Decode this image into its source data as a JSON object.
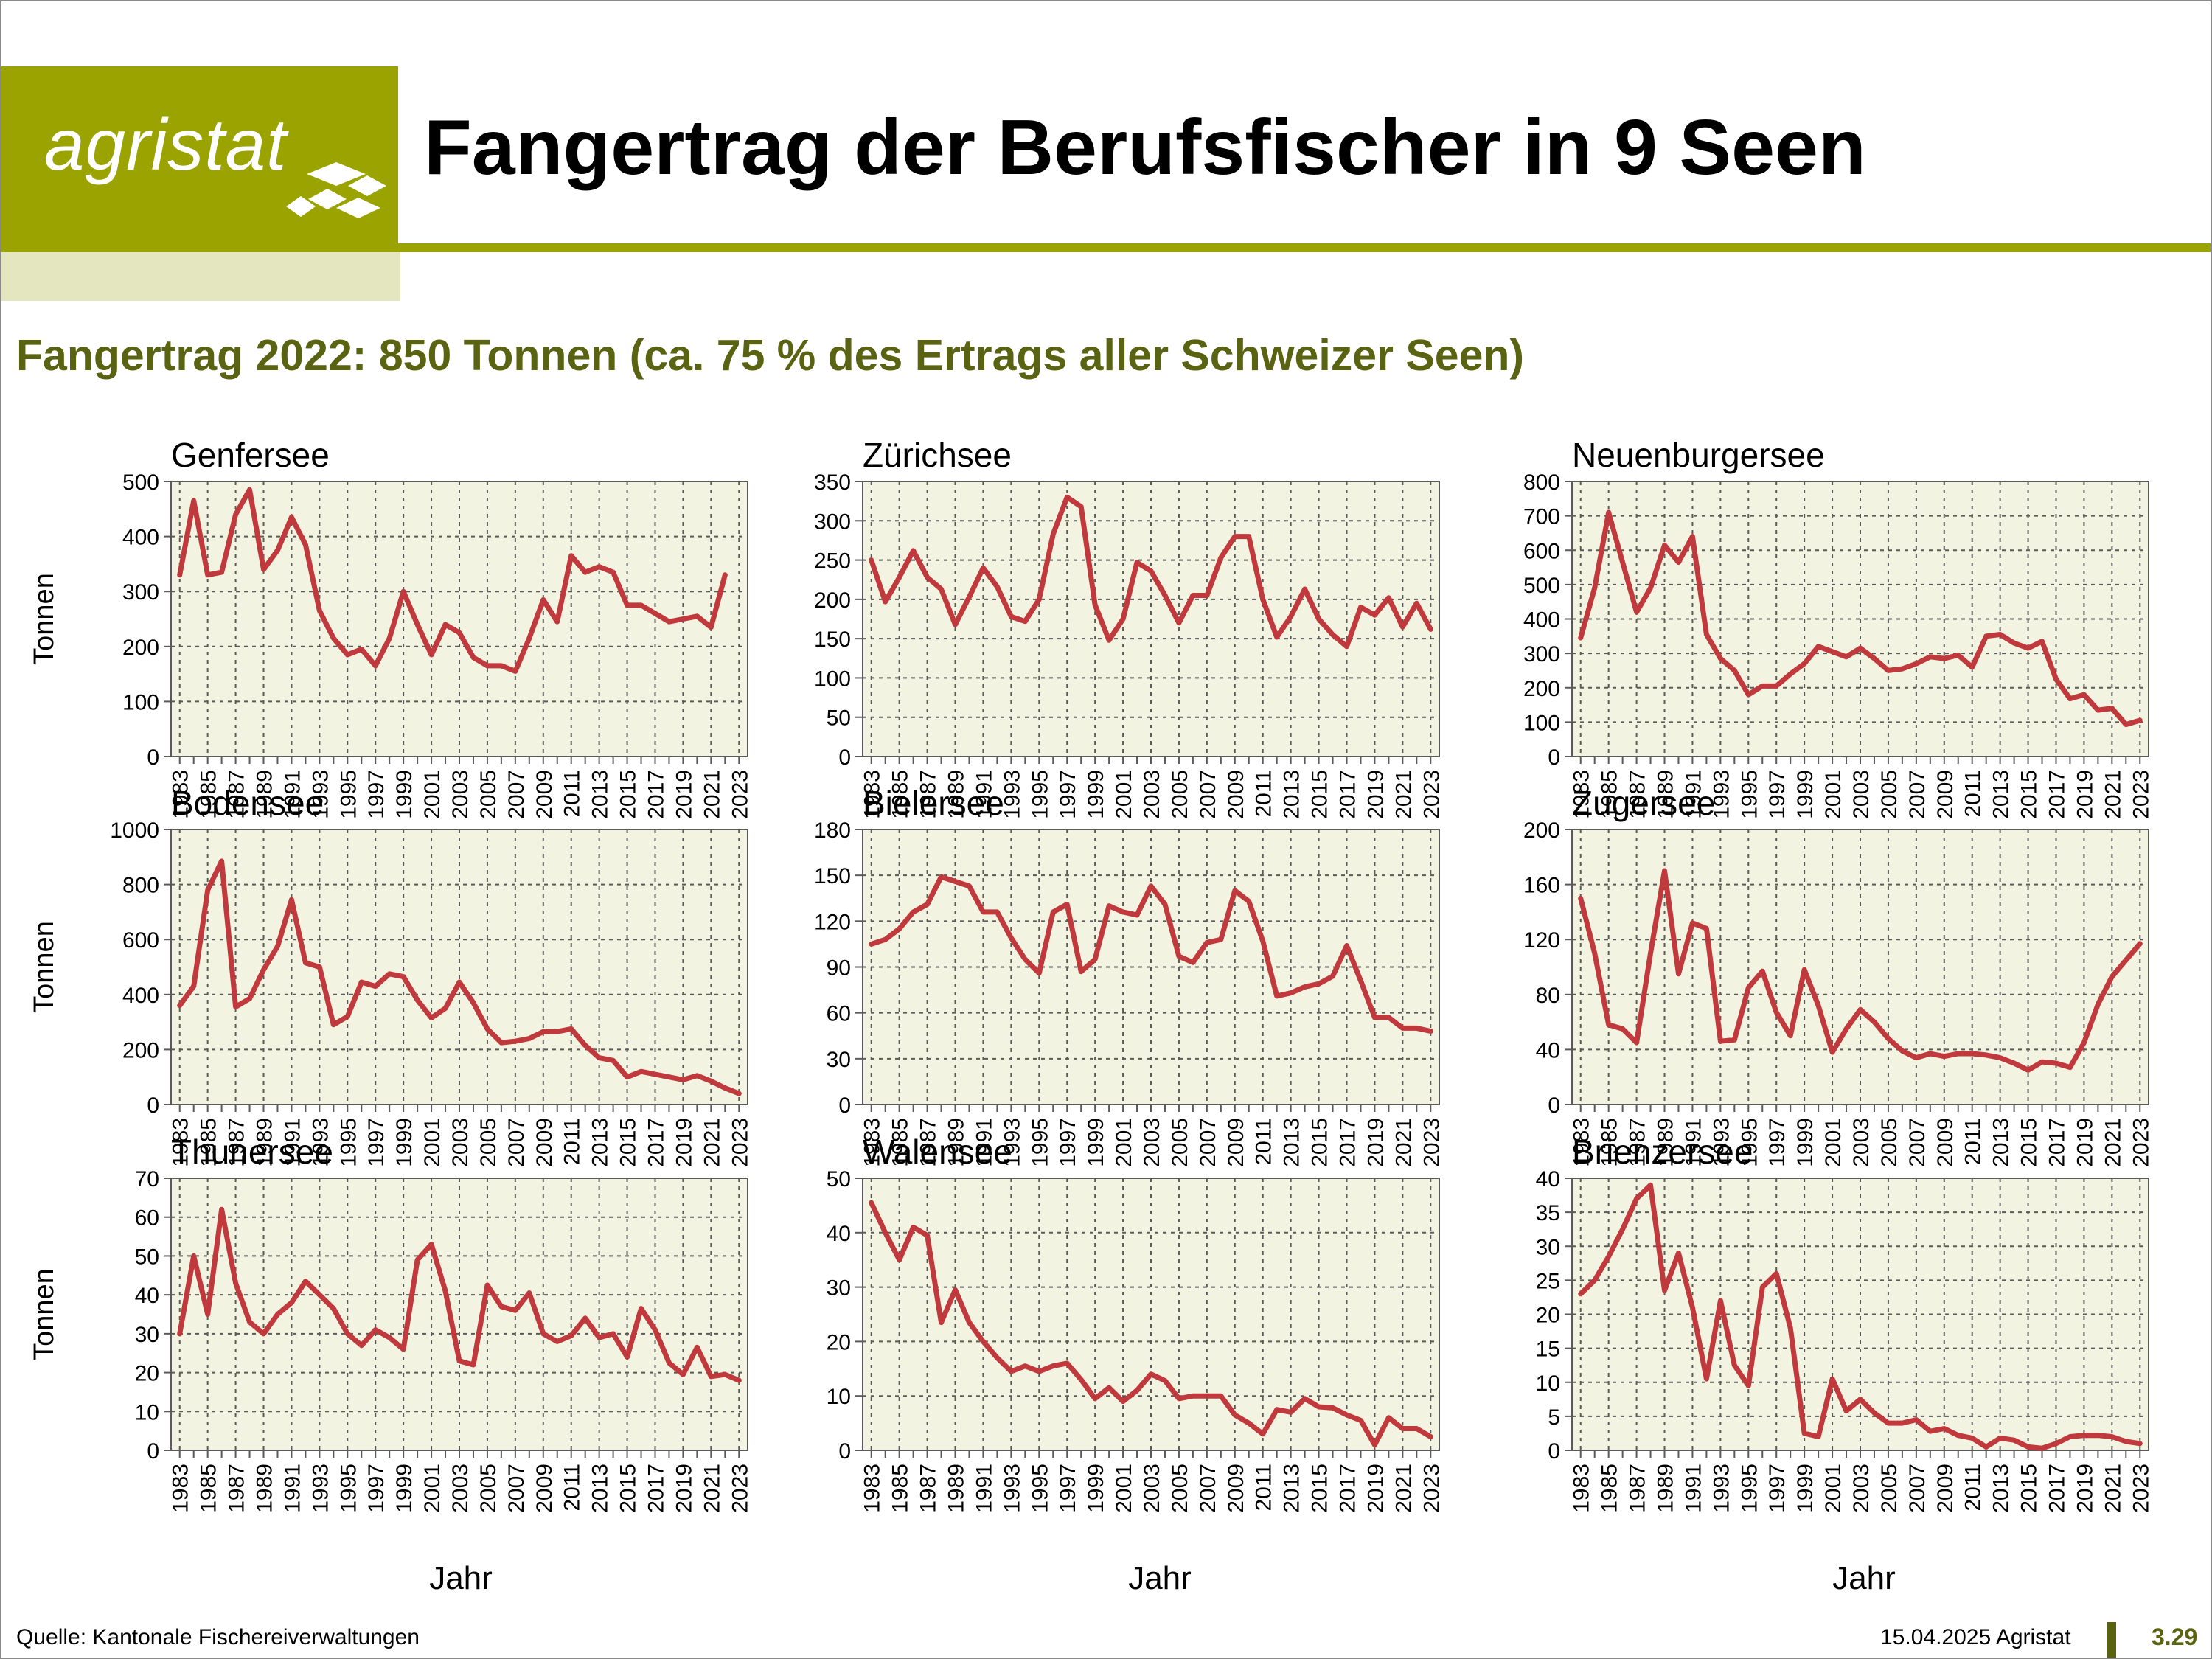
{
  "header": {
    "logo_text": "agristat",
    "title": "Fangertrag der Berufsfischer in 9 Seen",
    "subtitle": "Fangertrag 2022: 850 Tonnen (ca. 75 % des Ertrags aller Schweizer Seen)"
  },
  "footer": {
    "source": "Quelle: Kantonale Fischereiverwaltungen",
    "date": "15.04.2025 Agristat",
    "page": "3.29"
  },
  "colors": {
    "brand_green": "#9aa300",
    "brand_green_light": "#e3e6bf",
    "subtitle_olive": "#5a6312",
    "plot_background": "#f3f3e1",
    "line_red": "#c0393d"
  },
  "chart_data": [
    {
      "type": "line",
      "title": "Genfersee",
      "ylabel": "Tonnen",
      "xlabel": "",
      "ylim": [
        0,
        500
      ],
      "yticks": [
        0,
        100,
        200,
        300,
        400,
        500
      ],
      "x": [
        1983,
        1984,
        1985,
        1986,
        1987,
        1988,
        1989,
        1990,
        1991,
        1992,
        1993,
        1994,
        1995,
        1996,
        1997,
        1998,
        1999,
        2000,
        2001,
        2002,
        2003,
        2004,
        2005,
        2006,
        2007,
        2008,
        2009,
        2010,
        2011,
        2012,
        2013,
        2014,
        2015,
        2016,
        2017,
        2018,
        2019,
        2020,
        2021,
        2022
      ],
      "values": [
        330,
        465,
        330,
        335,
        440,
        485,
        340,
        375,
        435,
        385,
        265,
        215,
        185,
        195,
        165,
        215,
        300,
        240,
        185,
        240,
        225,
        180,
        165,
        165,
        155,
        215,
        285,
        245,
        365,
        335,
        345,
        335,
        275,
        275,
        260,
        245,
        250,
        255,
        235,
        330
      ]
    },
    {
      "type": "line",
      "title": "Zürichsee",
      "ylabel": "",
      "xlabel": "",
      "ylim": [
        0,
        350
      ],
      "yticks": [
        0,
        50,
        100,
        150,
        200,
        250,
        300,
        350
      ],
      "x": [
        1983,
        1984,
        1985,
        1986,
        1987,
        1988,
        1989,
        1990,
        1991,
        1992,
        1993,
        1994,
        1995,
        1996,
        1997,
        1998,
        1999,
        2000,
        2001,
        2002,
        2003,
        2004,
        2005,
        2006,
        2007,
        2008,
        2009,
        2010,
        2011,
        2012,
        2013,
        2014,
        2015,
        2016,
        2017,
        2018,
        2019,
        2020,
        2021,
        2022,
        2023
      ],
      "values": [
        250,
        197,
        228,
        262,
        228,
        213,
        168,
        203,
        240,
        216,
        178,
        172,
        200,
        283,
        330,
        318,
        193,
        148,
        175,
        247,
        236,
        205,
        170,
        205,
        205,
        253,
        280,
        280,
        200,
        152,
        178,
        213,
        175,
        155,
        140,
        190,
        180,
        202,
        165,
        195,
        162
      ]
    },
    {
      "type": "line",
      "title": "Neuenburgersee",
      "ylabel": "",
      "xlabel": "",
      "ylim": [
        0,
        800
      ],
      "yticks": [
        0,
        100,
        200,
        300,
        400,
        500,
        600,
        700,
        800
      ],
      "x": [
        1983,
        1984,
        1985,
        1986,
        1987,
        1988,
        1989,
        1990,
        1991,
        1992,
        1993,
        1994,
        1995,
        1996,
        1997,
        1998,
        1999,
        2000,
        2001,
        2002,
        2003,
        2004,
        2005,
        2006,
        2007,
        2008,
        2009,
        2010,
        2011,
        2012,
        2013,
        2014,
        2015,
        2016,
        2017,
        2018,
        2019,
        2020,
        2021,
        2022,
        2023
      ],
      "values": [
        345,
        490,
        710,
        565,
        420,
        490,
        615,
        565,
        640,
        355,
        285,
        250,
        180,
        205,
        205,
        240,
        270,
        320,
        305,
        290,
        315,
        285,
        250,
        255,
        270,
        290,
        285,
        295,
        260,
        350,
        355,
        330,
        315,
        335,
        225,
        168,
        180,
        135,
        140,
        93,
        105
      ]
    },
    {
      "type": "line",
      "title": "Bodensee",
      "ylabel": "Tonnen",
      "xlabel": "",
      "ylim": [
        0,
        1000
      ],
      "yticks": [
        0,
        200,
        400,
        600,
        800,
        1000
      ],
      "x": [
        1983,
        1984,
        1985,
        1986,
        1987,
        1988,
        1989,
        1990,
        1991,
        1992,
        1993,
        1994,
        1995,
        1996,
        1997,
        1998,
        1999,
        2000,
        2001,
        2002,
        2003,
        2004,
        2005,
        2006,
        2007,
        2008,
        2009,
        2010,
        2011,
        2012,
        2013,
        2014,
        2015,
        2016,
        2017,
        2018,
        2019,
        2020,
        2021,
        2022,
        2023
      ],
      "values": [
        360,
        430,
        780,
        885,
        355,
        385,
        490,
        575,
        745,
        515,
        500,
        290,
        320,
        445,
        430,
        475,
        465,
        380,
        315,
        350,
        445,
        370,
        275,
        225,
        230,
        240,
        265,
        265,
        275,
        215,
        170,
        160,
        100,
        120,
        110,
        100,
        90,
        105,
        85,
        60,
        40
      ]
    },
    {
      "type": "line",
      "title": "Bielersee",
      "ylabel": "",
      "xlabel": "",
      "ylim": [
        0,
        180
      ],
      "yticks": [
        0,
        30,
        60,
        90,
        120,
        150,
        180
      ],
      "x": [
        1983,
        1984,
        1985,
        1986,
        1987,
        1988,
        1989,
        1990,
        1991,
        1992,
        1993,
        1994,
        1995,
        1996,
        1997,
        1998,
        1999,
        2000,
        2001,
        2002,
        2003,
        2004,
        2005,
        2006,
        2007,
        2008,
        2009,
        2010,
        2011,
        2012,
        2013,
        2014,
        2015,
        2016,
        2017,
        2018,
        2019,
        2020,
        2021,
        2022,
        2023
      ],
      "values": [
        105,
        108,
        115,
        126,
        131,
        149,
        146,
        143,
        126,
        126,
        109,
        95,
        86,
        126,
        131,
        87,
        95,
        130,
        126,
        124,
        143,
        131,
        97,
        93,
        106,
        108,
        140,
        133,
        107,
        71,
        73,
        77,
        79,
        84,
        104,
        81,
        57,
        57,
        50,
        50,
        48
      ]
    },
    {
      "type": "line",
      "title": "Zugersee",
      "ylabel": "",
      "xlabel": "",
      "ylim": [
        0,
        200
      ],
      "yticks": [
        0,
        40,
        80,
        120,
        160,
        200
      ],
      "x": [
        1983,
        1984,
        1985,
        1986,
        1987,
        1988,
        1989,
        1990,
        1991,
        1992,
        1993,
        1994,
        1995,
        1996,
        1997,
        1998,
        1999,
        2000,
        2001,
        2002,
        2003,
        2004,
        2005,
        2006,
        2007,
        2008,
        2009,
        2010,
        2011,
        2012,
        2013,
        2014,
        2015,
        2016,
        2017,
        2018,
        2019,
        2020,
        2021,
        2022,
        2023
      ],
      "values": [
        150,
        110,
        58,
        55,
        45,
        110,
        170,
        95,
        132,
        128,
        46,
        47,
        85,
        97,
        67,
        50,
        98,
        72,
        38,
        55,
        69,
        60,
        48,
        39,
        34,
        37,
        35,
        37,
        37,
        36,
        34,
        30,
        25,
        31,
        30,
        27,
        45,
        73,
        93,
        105,
        117
      ]
    },
    {
      "type": "line",
      "title": "Thunersee",
      "ylabel": "Tonnen",
      "xlabel": "",
      "ylim": [
        0,
        70
      ],
      "yticks": [
        0,
        10,
        20,
        30,
        40,
        50,
        60,
        70
      ],
      "x": [
        1983,
        1984,
        1985,
        1986,
        1987,
        1988,
        1989,
        1990,
        1991,
        1992,
        1993,
        1994,
        1995,
        1996,
        1997,
        1998,
        1999,
        2000,
        2001,
        2002,
        2003,
        2004,
        2005,
        2006,
        2007,
        2008,
        2009,
        2010,
        2011,
        2012,
        2013,
        2014,
        2015,
        2016,
        2017,
        2018,
        2019,
        2020,
        2021,
        2022,
        2023
      ],
      "values": [
        30,
        50,
        35,
        62,
        43,
        33,
        30,
        35,
        38,
        43.5,
        40,
        36.5,
        30,
        27,
        31,
        29,
        26,
        49,
        53,
        41,
        23,
        22,
        42.5,
        37,
        36,
        40.5,
        30,
        28,
        29.5,
        34,
        29,
        30,
        24,
        36.5,
        31,
        22.5,
        19.5,
        26.5,
        19,
        19.5,
        18
      ]
    },
    {
      "type": "line",
      "title": "Walensee",
      "ylabel": "",
      "xlabel": "Jahr",
      "ylim": [
        0,
        50
      ],
      "yticks": [
        0,
        10,
        20,
        30,
        40,
        50
      ],
      "x": [
        1983,
        1984,
        1985,
        1986,
        1987,
        1988,
        1989,
        1990,
        1991,
        1992,
        1993,
        1994,
        1995,
        1996,
        1997,
        1998,
        1999,
        2000,
        2001,
        2002,
        2003,
        2004,
        2005,
        2006,
        2007,
        2008,
        2009,
        2010,
        2011,
        2012,
        2013,
        2014,
        2015,
        2016,
        2017,
        2018,
        2019,
        2020,
        2021,
        2022,
        2023
      ],
      "values": [
        45.5,
        40,
        35,
        41,
        39.5,
        23.5,
        29.5,
        23.5,
        20,
        17,
        14.5,
        15.5,
        14.5,
        15.5,
        16,
        13,
        9.5,
        11.5,
        9,
        11,
        14,
        12.8,
        9.5,
        10,
        10,
        10,
        6.5,
        5,
        3,
        7.5,
        7,
        9.5,
        8,
        7.8,
        6.5,
        5.5,
        1,
        6,
        4,
        4,
        2.5
      ]
    },
    {
      "type": "line",
      "title": "Brienzersee",
      "ylabel": "",
      "xlabel": "",
      "ylim": [
        0,
        40
      ],
      "yticks": [
        0,
        5,
        10,
        15,
        20,
        25,
        30,
        35,
        40
      ],
      "x": [
        1983,
        1984,
        1985,
        1986,
        1987,
        1988,
        1989,
        1990,
        1991,
        1992,
        1993,
        1994,
        1995,
        1996,
        1997,
        1998,
        1999,
        2000,
        2001,
        2002,
        2003,
        2004,
        2005,
        2006,
        2007,
        2008,
        2009,
        2010,
        2011,
        2012,
        2013,
        2014,
        2015,
        2016,
        2017,
        2018,
        2019,
        2020,
        2021,
        2022,
        2023
      ],
      "values": [
        23,
        25,
        28.5,
        32.5,
        37,
        39,
        23.5,
        29,
        21,
        10.5,
        22,
        12.5,
        9.5,
        24,
        26,
        18,
        2.5,
        2,
        10.5,
        5.8,
        7.5,
        5.5,
        4,
        4,
        4.5,
        2.8,
        3.2,
        2.2,
        1.8,
        0.5,
        1.8,
        1.5,
        0.5,
        0.3,
        1,
        2,
        2.2,
        2.2,
        2,
        1.3,
        1
      ]
    }
  ]
}
